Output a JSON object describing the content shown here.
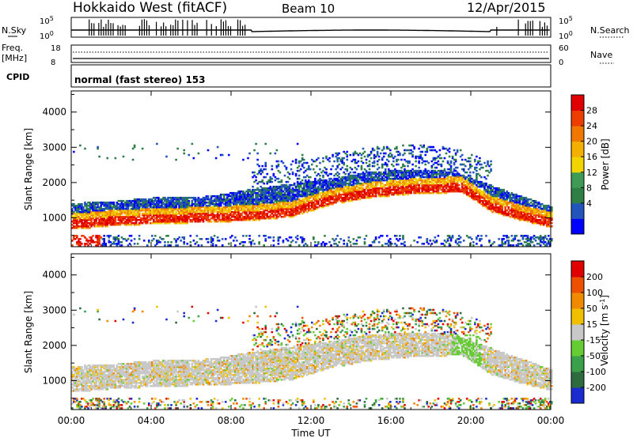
{
  "header": {
    "title": "Hokkaido West (fitACF)",
    "beam": "Beam 10",
    "date": "12/Apr/2015"
  },
  "strip_nsky": {
    "left_label": "N.Sky",
    "right_label": "N.Search",
    "ticks": [
      "10^5",
      "10^0"
    ],
    "ticks_right": [
      "10^5",
      "10^0"
    ]
  },
  "strip_freq": {
    "left_label_top": "Freq.",
    "left_label_unit": "[MHz]",
    "ticks_left": [
      "18",
      "8"
    ],
    "ticks_right": [
      "60",
      "0"
    ],
    "right_label": "Nave"
  },
  "cpid": {
    "label": "CPID",
    "value": "normal (fast stereo) 153"
  },
  "chart_data": [
    {
      "type": "heatmap",
      "name": "power-panel",
      "title": "",
      "xlabel": "Time UT",
      "ylabel": "Slant Range [km]",
      "x_ticks": [
        "00:00",
        "04:00",
        "08:00",
        "12:00",
        "16:00",
        "20:00",
        "00:00"
      ],
      "x_range_hours": [
        0,
        24
      ],
      "y_ticks": [
        "1000",
        "2000",
        "3000",
        "4000"
      ],
      "y_range_km": [
        180,
        4600
      ],
      "colorbar": {
        "label": "Power [dB]",
        "ticks": [
          "28",
          "24",
          "20",
          "16",
          "12",
          "8",
          "4"
        ],
        "colors": [
          "#0000ff",
          "#2255bb",
          "#2e7f46",
          "#3f9a55",
          "#f1d400",
          "#f3b000",
          "#f07800",
          "#ee3d00",
          "#e00000"
        ],
        "range": [
          0,
          32
        ]
      }
    },
    {
      "type": "heatmap",
      "name": "velocity-panel",
      "title": "",
      "xlabel": "Time UT",
      "ylabel": "Slant Range [km]",
      "x_ticks": [
        "00:00",
        "04:00",
        "08:00",
        "12:00",
        "16:00",
        "20:00",
        "00:00"
      ],
      "x_range_hours": [
        0,
        24
      ],
      "y_ticks": [
        "1000",
        "2000",
        "3000",
        "4000"
      ],
      "y_range_km": [
        180,
        4600
      ],
      "colorbar": {
        "label": "Velocity [m s^-1]",
        "ticks": [
          "200",
          "100",
          "50",
          "15",
          "-15",
          "-50",
          "-100",
          "-200"
        ],
        "colors": [
          "#1a2ccf",
          "#2e6b3f",
          "#3aa04a",
          "#66cc33",
          "#c8c8c8",
          "#f0c000",
          "#f08a00",
          "#ee5000",
          "#e00000"
        ],
        "range": [
          -250,
          250
        ]
      }
    }
  ]
}
